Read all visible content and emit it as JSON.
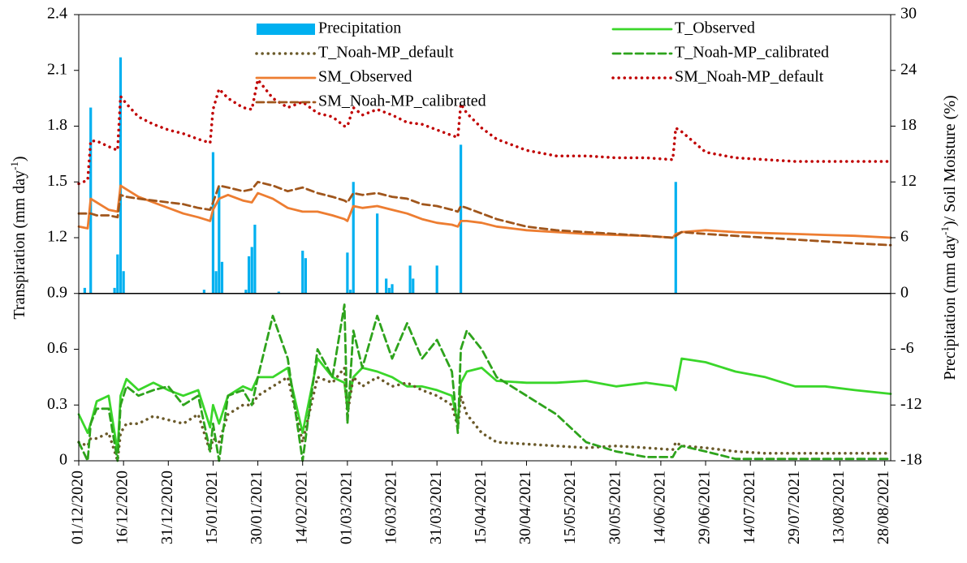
{
  "chart_data": {
    "type": "line",
    "ylabel": [
      "Transpiration (mm day",
      "-1",
      ")"
    ],
    "y2label": [
      "Precipitation (mm day",
      "-1",
      ")/ Soil Moisture (%)"
    ],
    "xlim": [
      "01/12/2020",
      "30/08/2021"
    ],
    "xticks": [
      "01/12/2020",
      "16/12/2020",
      "31/12/2020",
      "15/01/2021",
      "30/01/2021",
      "14/02/2021",
      "01/03/2021",
      "16/03/2021",
      "31/03/2021",
      "15/04/2021",
      "30/04/2021",
      "15/05/2021",
      "30/05/2021",
      "14/06/2021",
      "29/06/2021",
      "14/07/2021",
      "29/07/2021",
      "13/08/2021",
      "28/08/2021"
    ],
    "ylim": [
      0,
      2.4
    ],
    "yticks": [
      0,
      0.3,
      0.6,
      0.9,
      1.2,
      1.5,
      1.8,
      2.1,
      2.4
    ],
    "y2lim": [
      -18,
      30
    ],
    "y2ticks": [
      -18,
      -12,
      -6,
      0,
      6,
      12,
      18,
      24,
      30
    ],
    "x": [
      "01/12/2020",
      "04/12/2020",
      "05/12/2020",
      "07/12/2020",
      "11/12/2020",
      "14/12/2020",
      "15/12/2020",
      "17/12/2020",
      "21/12/2020",
      "26/12/2020",
      "31/12/2020",
      "05/01/2021",
      "10/01/2021",
      "14/01/2021",
      "15/01/2021",
      "17/01/2021",
      "20/01/2021",
      "25/01/2021",
      "28/01/2021",
      "30/01/2021",
      "04/02/2021",
      "09/02/2021",
      "14/02/2021",
      "19/02/2021",
      "24/02/2021",
      "28/02/2021",
      "01/03/2021",
      "03/03/2021",
      "06/03/2021",
      "11/03/2021",
      "16/03/2021",
      "21/03/2021",
      "26/03/2021",
      "31/03/2021",
      "05/04/2021",
      "07/04/2021",
      "08/04/2021",
      "10/04/2021",
      "15/04/2021",
      "20/04/2021",
      "30/04/2021",
      "10/05/2021",
      "20/05/2021",
      "30/05/2021",
      "09/06/2021",
      "18/06/2021",
      "19/06/2021",
      "21/06/2021",
      "29/06/2021",
      "09/07/2021",
      "19/07/2021",
      "29/07/2021",
      "08/08/2021",
      "18/08/2021",
      "30/08/2021"
    ],
    "series": [
      {
        "name": "Precipitation",
        "type": "bar",
        "axis": "y2",
        "color": "#00b0f0",
        "x": [
          "03/12/2020",
          "05/12/2020",
          "13/12/2020",
          "14/12/2020",
          "15/12/2020",
          "16/12/2020",
          "12/01/2021",
          "15/01/2021",
          "16/01/2021",
          "17/01/2021",
          "18/01/2021",
          "26/01/2021",
          "27/01/2021",
          "28/01/2021",
          "29/01/2021",
          "06/02/2021",
          "14/02/2021",
          "15/02/2021",
          "01/03/2021",
          "02/03/2021",
          "03/03/2021",
          "11/03/2021",
          "14/03/2021",
          "15/03/2021",
          "16/03/2021",
          "22/03/2021",
          "23/03/2021",
          "31/03/2021",
          "08/04/2021",
          "19/06/2021"
        ],
        "values": [
          0.6,
          20,
          0.6,
          4.2,
          25.4,
          2.4,
          0.4,
          15.2,
          2.4,
          11.4,
          3.4,
          0.4,
          4,
          5,
          7.4,
          0.2,
          4.6,
          3.8,
          4.4,
          0.4,
          12,
          8.6,
          1.6,
          0.6,
          1,
          3,
          1.6,
          3,
          16,
          12
        ]
      },
      {
        "name": "T_Observed",
        "color": "#3ad62a",
        "style": "solid",
        "values": [
          0.25,
          0.15,
          0.2,
          0.32,
          0.35,
          0.05,
          0.35,
          0.44,
          0.38,
          0.42,
          0.38,
          0.35,
          0.38,
          0.18,
          0.3,
          0.2,
          0.35,
          0.4,
          0.38,
          0.45,
          0.45,
          0.5,
          0.15,
          0.55,
          0.45,
          0.42,
          0.28,
          0.45,
          0.5,
          0.48,
          0.45,
          0.4,
          0.4,
          0.38,
          0.35,
          0.2,
          0.42,
          0.48,
          0.5,
          0.43,
          0.42,
          0.42,
          0.43,
          0.4,
          0.42,
          0.4,
          0.38,
          0.55,
          0.53,
          0.48,
          0.45,
          0.4,
          0.4,
          0.38,
          0.36
        ]
      },
      {
        "name": "T_Noah-MP_default",
        "color": "#6b5a2a",
        "style": "dotted",
        "values": [
          0.1,
          0.08,
          0.12,
          0.12,
          0.15,
          0,
          0.15,
          0.2,
          0.2,
          0.24,
          0.22,
          0.2,
          0.25,
          0.05,
          0.12,
          0.1,
          0.25,
          0.3,
          0.3,
          0.35,
          0.4,
          0.45,
          0.1,
          0.45,
          0.42,
          0.5,
          0.25,
          0.45,
          0.4,
          0.45,
          0.4,
          0.42,
          0.38,
          0.35,
          0.3,
          0.18,
          0.35,
          0.25,
          0.15,
          0.1,
          0.09,
          0.08,
          0.07,
          0.08,
          0.07,
          0.06,
          0.1,
          0.08,
          0.07,
          0.05,
          0.04,
          0.04,
          0.04,
          0.04,
          0.04
        ]
      },
      {
        "name": "T_Noah-MP_calibrated",
        "color": "#2ea31c",
        "style": "dashed",
        "values": [
          0.1,
          0,
          0.2,
          0.28,
          0.28,
          0,
          0.3,
          0.4,
          0.35,
          0.38,
          0.4,
          0.3,
          0.35,
          0.05,
          0.2,
          0,
          0.35,
          0.38,
          0.3,
          0.45,
          0.78,
          0.55,
          0,
          0.6,
          0.45,
          0.84,
          0.2,
          0.7,
          0.5,
          0.78,
          0.55,
          0.74,
          0.55,
          0.65,
          0.48,
          0.15,
          0.6,
          0.7,
          0.6,
          0.45,
          0.35,
          0.25,
          0.1,
          0.05,
          0.02,
          0.02,
          0.05,
          0.08,
          0.05,
          0.01,
          0.01,
          0.01,
          0.01,
          0.01,
          0.01
        ]
      },
      {
        "name": "SM_Observed",
        "axis": "y2",
        "color": "#ed7d31",
        "style": "solid",
        "values": [
          7.2,
          7,
          10.2,
          9.8,
          9,
          8.8,
          11.6,
          11.2,
          10.4,
          9.8,
          9.2,
          8.6,
          8.2,
          7.8,
          9,
          10.2,
          10.6,
          10,
          9.8,
          10.8,
          10.2,
          9.2,
          8.8,
          8.8,
          8.4,
          8,
          7.8,
          9.4,
          9.2,
          9.4,
          9,
          8.6,
          8,
          7.6,
          7.4,
          7.2,
          7.8,
          7.8,
          7.6,
          7.2,
          6.8,
          6.6,
          6.4,
          6.3,
          6.2,
          6,
          6.4,
          6.6,
          6.8,
          6.6,
          6.5,
          6.4,
          6.3,
          6.2,
          6
        ]
      },
      {
        "name": "SM_Noah-MP_default",
        "axis": "y2",
        "color": "#c00000",
        "style": "dotted",
        "values": [
          11.8,
          12.2,
          16.4,
          16.4,
          15.8,
          15.4,
          21.2,
          20.4,
          19,
          18.2,
          17.6,
          17.2,
          16.6,
          16.2,
          19.8,
          22,
          21,
          20,
          19.8,
          23,
          21,
          20,
          20.6,
          19.4,
          19,
          18,
          18,
          20,
          19.2,
          19.8,
          19.2,
          18.4,
          18.2,
          17.6,
          17,
          16.8,
          20.4,
          19.4,
          17.8,
          16.6,
          15.4,
          14.8,
          14.8,
          14.6,
          14.6,
          14.4,
          17.8,
          17.4,
          15.2,
          14.6,
          14.4,
          14.2,
          14.2,
          14.2,
          14.2
        ]
      },
      {
        "name": "SM_Noah-MP_calibrated",
        "axis": "y2",
        "color": "#a0561c",
        "style": "dashed",
        "values": [
          8.6,
          8.6,
          8.6,
          8.4,
          8.4,
          8.2,
          10.6,
          10.4,
          10.2,
          10,
          9.8,
          9.6,
          9.2,
          9,
          9.8,
          11.6,
          11.4,
          11,
          11.2,
          12,
          11.6,
          11,
          11.4,
          10.8,
          10.4,
          10,
          9.8,
          10.8,
          10.6,
          10.8,
          10.4,
          10.2,
          9.6,
          9.4,
          9,
          8.8,
          9.4,
          9.2,
          8.6,
          8,
          7.2,
          6.8,
          6.6,
          6.4,
          6.2,
          6,
          6.2,
          6.6,
          6.4,
          6.2,
          6,
          5.8,
          5.6,
          5.4,
          5.2
        ]
      }
    ]
  }
}
